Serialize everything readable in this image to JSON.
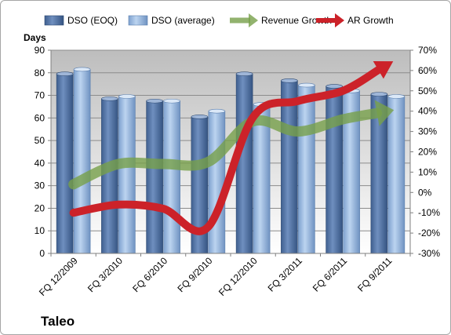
{
  "chart_data": {
    "type": "bar",
    "title": "Taleo",
    "categories": [
      "FQ 12/2009",
      "FQ 3/2010",
      "FQ 6/2010",
      "FQ 9/2010",
      "FQ 12/2010",
      "FQ 3/2011",
      "FQ 6/2011",
      "FQ 9/2011"
    ],
    "ylabel": "Days",
    "ylim": [
      0,
      90
    ],
    "yticks": [
      0,
      10,
      20,
      30,
      40,
      50,
      60,
      70,
      80,
      90
    ],
    "y2lim": [
      -30,
      70
    ],
    "y2ticks": [
      "-30%",
      "-20%",
      "-10%",
      "0%",
      "10%",
      "20%",
      "30%",
      "40%",
      "50%",
      "60%",
      "70%"
    ],
    "grid": true,
    "legend_position": "top",
    "series": [
      {
        "name": "DSO (EOQ)",
        "type": "bar",
        "axis": "left",
        "color": "#4f6f9f",
        "values": [
          79.5,
          68.5,
          67.5,
          60.5,
          79.5,
          76.5,
          74,
          70.5
        ]
      },
      {
        "name": "DSO (average)",
        "type": "bar",
        "axis": "left",
        "color": "#8fb0dc",
        "values": [
          81.5,
          69.5,
          67.5,
          63,
          66,
          74.5,
          72,
          69.5
        ]
      },
      {
        "name": "Revenue Growth",
        "type": "line",
        "axis": "right",
        "unit": "%",
        "color": "#77a04a",
        "values": [
          4,
          14,
          14,
          15,
          35,
          30,
          36,
          40
        ]
      },
      {
        "name": "AR Growth",
        "type": "line",
        "axis": "right",
        "unit": "%",
        "color": "#cc2229",
        "values": [
          -10,
          -6,
          -8,
          -17,
          37,
          45,
          50,
          63
        ]
      }
    ]
  }
}
